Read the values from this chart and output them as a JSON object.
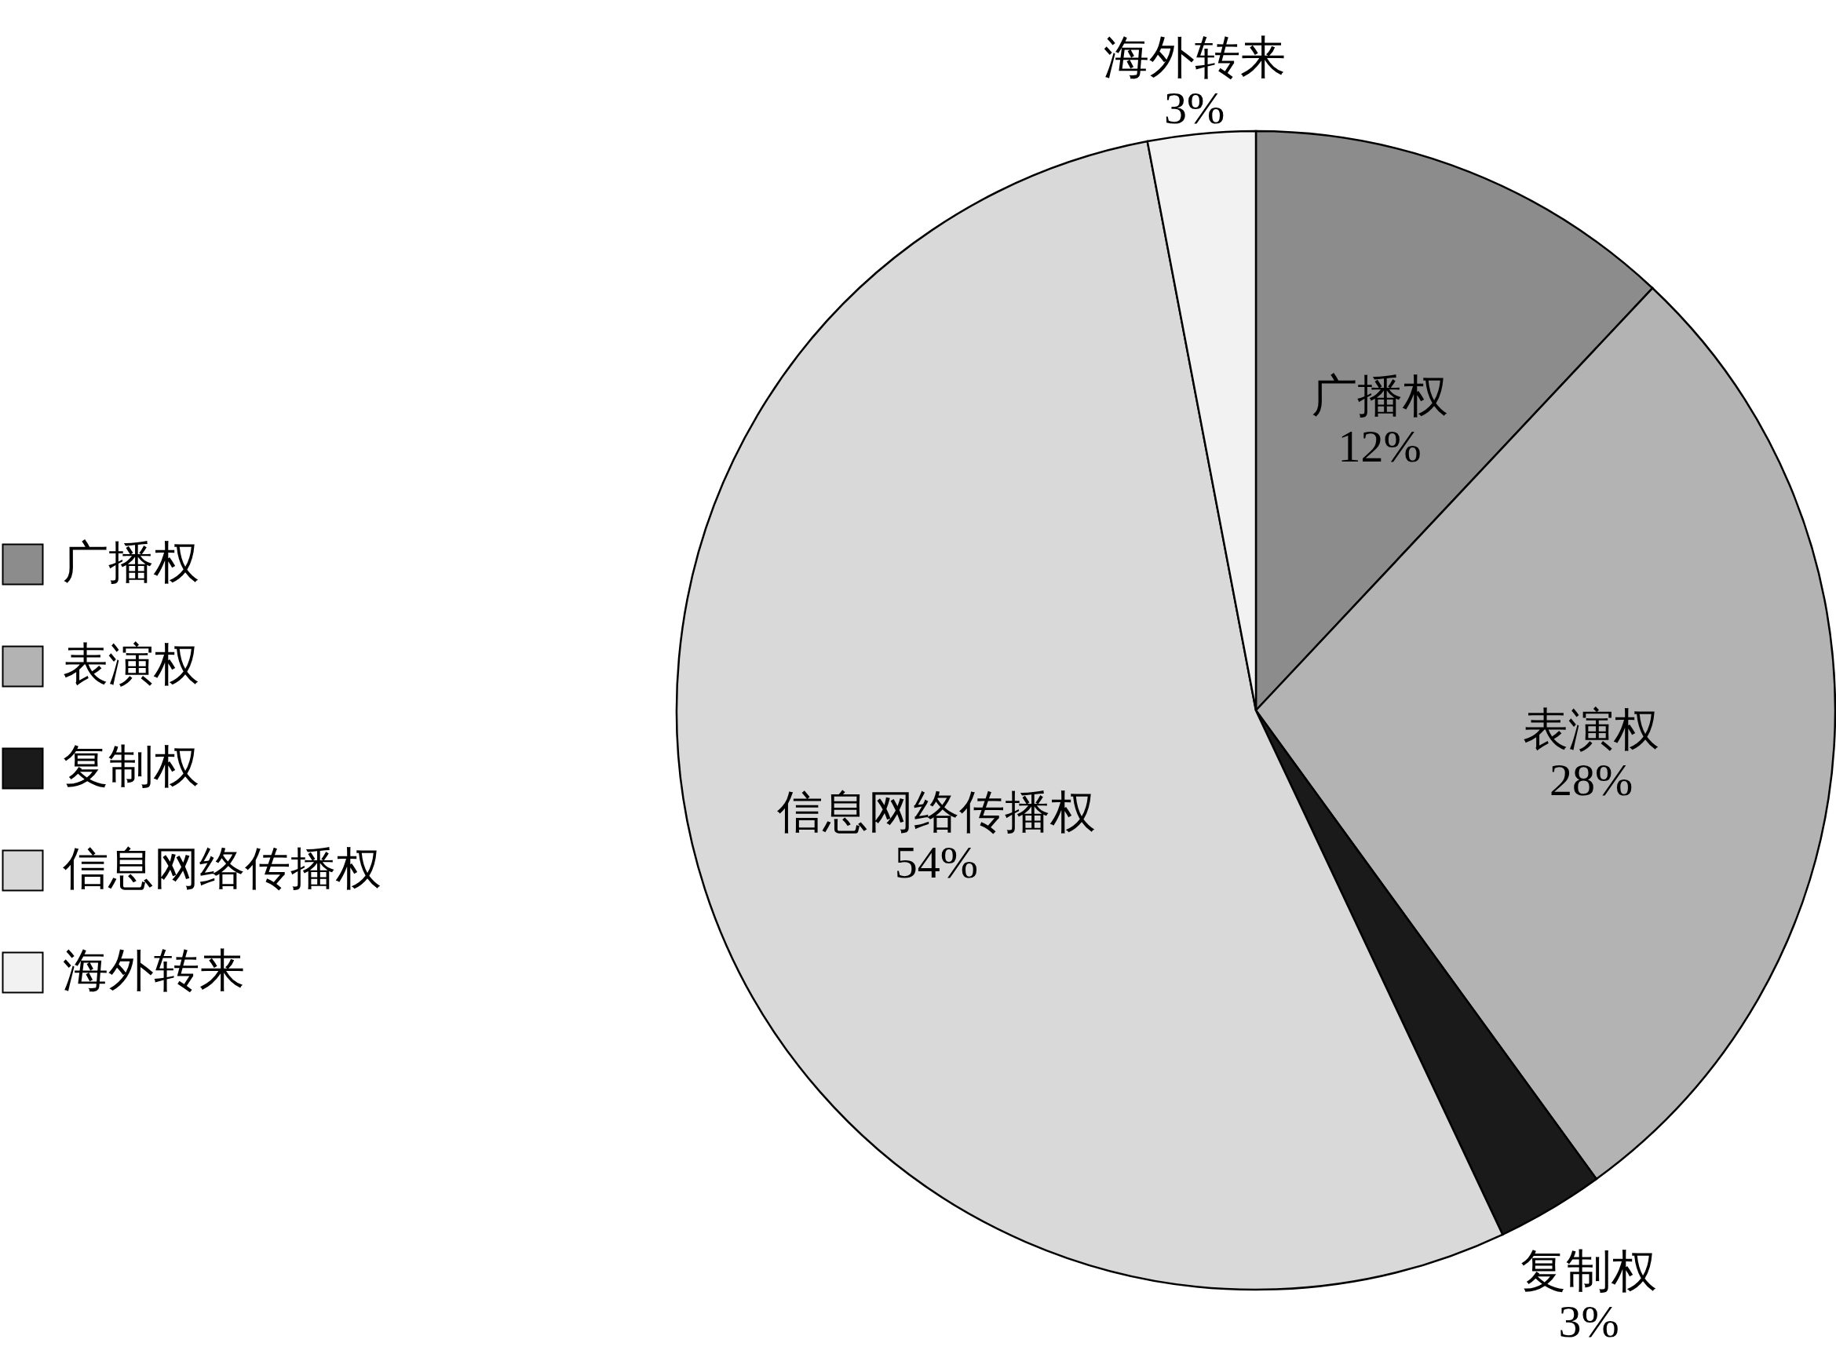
{
  "chart_data": {
    "type": "pie",
    "categories": [
      "广播权",
      "表演权",
      "复制权",
      "信息网络传播权",
      "海外转来"
    ],
    "values": [
      12,
      28,
      3,
      54,
      3
    ],
    "value_labels": [
      "12%",
      "28%",
      "3%",
      "54%",
      "3%"
    ],
    "colors": [
      "#8c8c8c",
      "#b3b3b3",
      "#1a1a1a",
      "#d9d9d9",
      "#f2f2f2"
    ],
    "legend": "left"
  }
}
